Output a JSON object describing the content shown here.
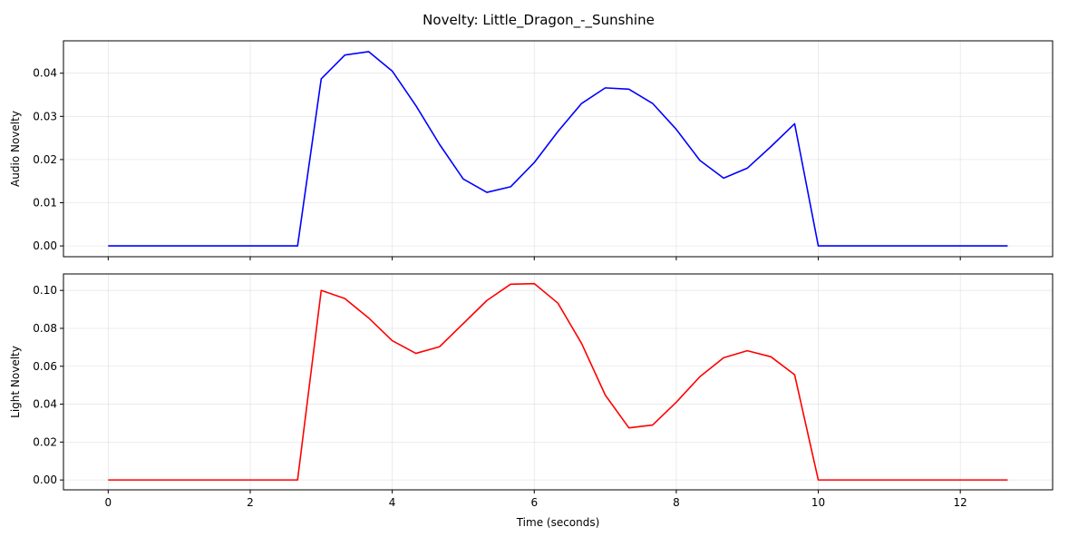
{
  "figure": {
    "title": "Novelty: Little_Dragon_-_Sunshine"
  },
  "chart_data": [
    {
      "type": "line",
      "title": "",
      "xlabel": "",
      "ylabel": "Audio Novelty",
      "xlim": [
        -0.63,
        13.3
      ],
      "ylim": [
        -0.0025,
        0.0475
      ],
      "xticks": [
        0,
        2,
        4,
        6,
        8,
        10,
        12
      ],
      "yticks": [
        0.0,
        0.01,
        0.02,
        0.03,
        0.04
      ],
      "ytick_labels": [
        "0.00",
        "0.01",
        "0.02",
        "0.03",
        "0.04"
      ],
      "show_xtick_labels": false,
      "grid": true,
      "series": [
        {
          "color": "#0000ff",
          "x": [
            0,
            0.333,
            0.667,
            1.0,
            1.333,
            1.667,
            2.0,
            2.333,
            2.667,
            3.0,
            3.333,
            3.667,
            4.0,
            4.333,
            4.667,
            5.0,
            5.333,
            5.667,
            6.0,
            6.333,
            6.667,
            7.0,
            7.333,
            7.667,
            8.0,
            8.333,
            8.667,
            9.0,
            9.333,
            9.667,
            10.0,
            10.333,
            10.667,
            11.0,
            11.333,
            11.667,
            12.0,
            12.333,
            12.667
          ],
          "y": [
            0,
            0,
            0,
            0,
            0,
            0,
            0,
            0,
            0,
            0.0387,
            0.0442,
            0.045,
            0.0405,
            0.0325,
            0.0235,
            0.0155,
            0.0124,
            0.0137,
            0.0193,
            0.0265,
            0.033,
            0.0366,
            0.0363,
            0.033,
            0.027,
            0.0198,
            0.0157,
            0.018,
            0.023,
            0.0283,
            0,
            0,
            0,
            0,
            0,
            0,
            0,
            0,
            0
          ]
        }
      ]
    },
    {
      "type": "line",
      "title": "",
      "xlabel": "Time (seconds)",
      "ylabel": "Light Novelty",
      "xlim": [
        -0.63,
        13.3
      ],
      "ylim": [
        -0.0052,
        0.1087
      ],
      "xticks": [
        0,
        2,
        4,
        6,
        8,
        10,
        12
      ],
      "yticks": [
        0.0,
        0.02,
        0.04,
        0.06,
        0.08,
        0.1
      ],
      "ytick_labels": [
        "0.00",
        "0.02",
        "0.04",
        "0.06",
        "0.08",
        "0.10"
      ],
      "show_xtick_labels": true,
      "grid": true,
      "series": [
        {
          "color": "#ff0000",
          "x": [
            0,
            0.333,
            0.667,
            1.0,
            1.333,
            1.667,
            2.0,
            2.333,
            2.667,
            3.0,
            3.333,
            3.667,
            4.0,
            4.333,
            4.667,
            5.0,
            5.333,
            5.667,
            6.0,
            6.333,
            6.667,
            7.0,
            7.333,
            7.667,
            8.0,
            8.333,
            8.667,
            9.0,
            9.333,
            9.667,
            10.0,
            10.333,
            10.667,
            11.0,
            11.333,
            11.667,
            12.0,
            12.333,
            12.667
          ],
          "y": [
            0,
            0,
            0,
            0,
            0,
            0,
            0,
            0,
            0,
            0.1,
            0.0957,
            0.0855,
            0.0735,
            0.0668,
            0.0703,
            0.0825,
            0.0947,
            0.1033,
            0.1036,
            0.0933,
            0.072,
            0.0448,
            0.0275,
            0.029,
            0.041,
            0.0545,
            0.0645,
            0.0682,
            0.065,
            0.0555,
            0,
            0,
            0,
            0,
            0,
            0,
            0,
            0,
            0
          ]
        }
      ]
    }
  ]
}
